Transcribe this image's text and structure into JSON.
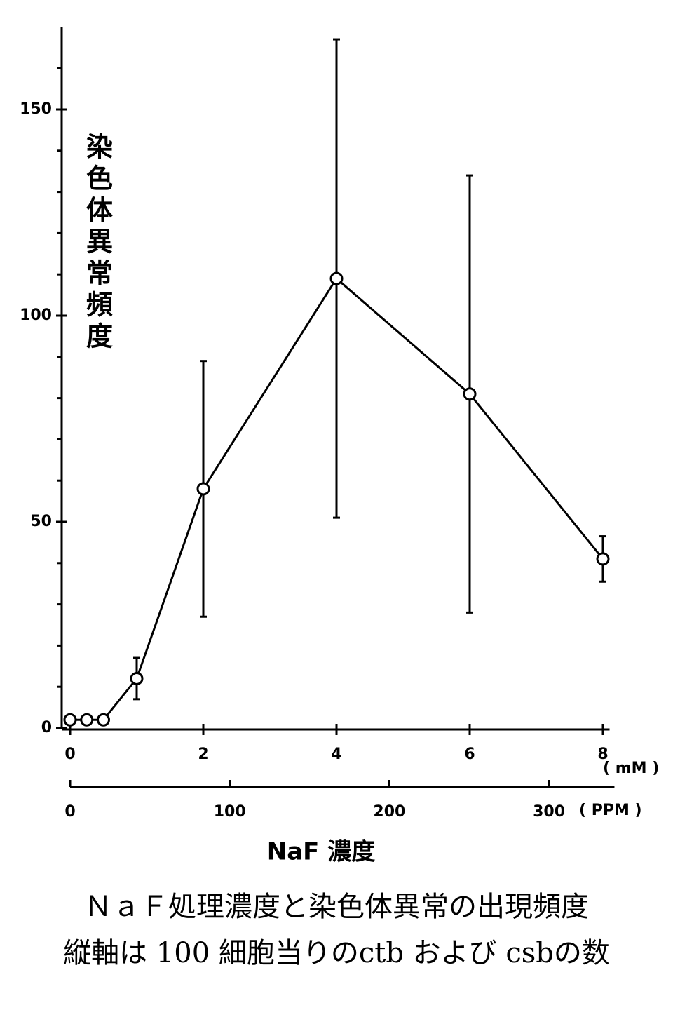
{
  "chart_data": {
    "type": "line",
    "y_label": "染色体異常頻度",
    "x_label": "NaF 濃度",
    "x_unit": "( mM )",
    "x2_unit": "( PPM )",
    "caption": [
      "ＮａＦ処理濃度と染色体異常の出現頻度",
      "縦軸は 100 細胞当りのctb および csbの数"
    ],
    "x": [
      0,
      0.25,
      0.5,
      1,
      2,
      4,
      6,
      8
    ],
    "series": [
      {
        "color": "#000000",
        "values": [
          2,
          2,
          2,
          12,
          58,
          109,
          81,
          41
        ],
        "errors": [
          null,
          null,
          null,
          5,
          31,
          58,
          53,
          5.5
        ]
      }
    ],
    "xlim": [
      0,
      8.1
    ],
    "xticks": [
      0,
      2,
      4,
      6,
      8
    ],
    "x2lim": [
      0,
      341
    ],
    "x2ticks": [
      0,
      100,
      200,
      300
    ],
    "ylim": [
      0,
      170
    ],
    "yticks": [
      0,
      50,
      100,
      150
    ],
    "yminorticks": [
      10,
      20,
      30,
      40,
      60,
      70,
      80,
      90,
      110,
      120,
      130,
      140,
      160
    ]
  }
}
